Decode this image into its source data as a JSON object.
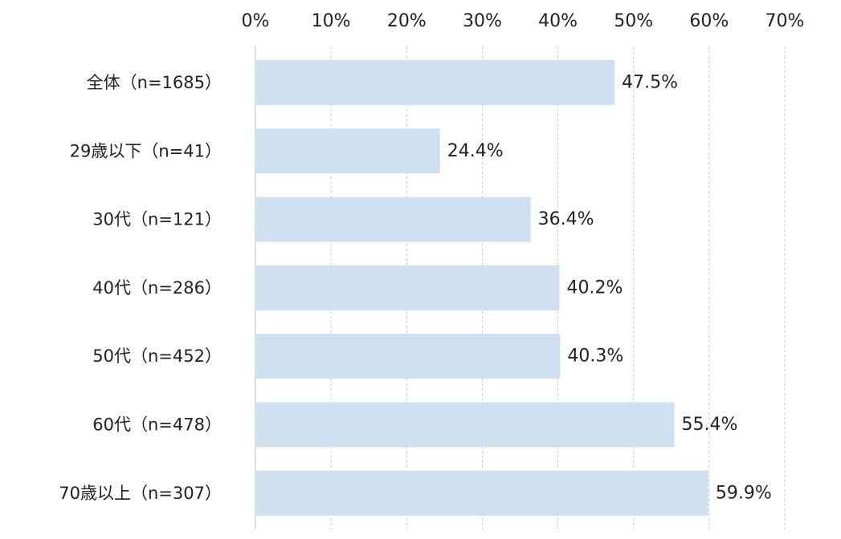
{
  "chart_data": {
    "type": "bar",
    "orientation": "horizontal",
    "title": "",
    "xlabel": "",
    "ylabel": "",
    "xlim": [
      0,
      70
    ],
    "x_ticks": [
      0,
      10,
      20,
      30,
      40,
      50,
      60,
      70
    ],
    "x_tick_labels": [
      "0%",
      "10%",
      "20%",
      "30%",
      "40%",
      "50%",
      "60%",
      "70%"
    ],
    "tick_axis_position": "top",
    "grid": "vertical dashed",
    "legend": "none",
    "bar_color": "#cfe0f1",
    "categories": [
      "全体（n=1685）",
      "29歳以下（n=41）",
      "30代（n=121）",
      "40代（n=286）",
      "50代（n=452）",
      "60代（n=478）",
      "70歳以上（n=307）"
    ],
    "values": [
      47.5,
      24.4,
      36.4,
      40.2,
      40.3,
      55.4,
      59.9
    ],
    "data_labels": [
      "47.5%",
      "24.4%",
      "36.4%",
      "40.2%",
      "40.3%",
      "55.4%",
      "59.9%"
    ]
  }
}
